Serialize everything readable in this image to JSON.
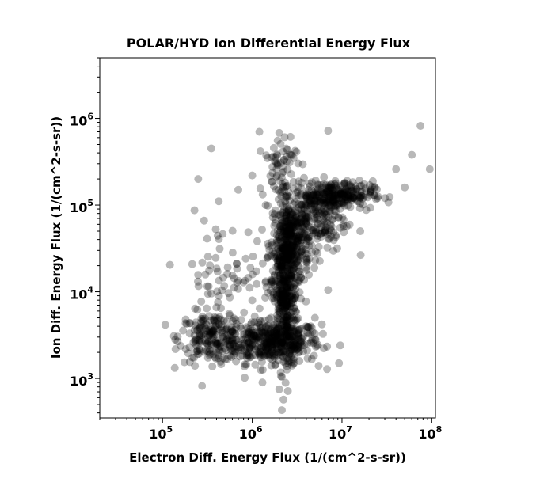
{
  "chart_data": {
    "type": "scatter",
    "title": "POLAR/HYD  Ion Differential Energy Flux",
    "xlabel": "Electron Diff. Energy Flux (1/(cm^2-s-sr))",
    "ylabel": "Ion Diff. Energy Flux (1/(cm^2-s-sr))",
    "x_scale": "log",
    "y_scale": "log",
    "xlim": [
      20000,
      110000000
    ],
    "ylim": [
      350,
      5000000
    ],
    "x_ticks": [
      {
        "base": "10",
        "exp": "5",
        "value": 100000
      },
      {
        "base": "10",
        "exp": "6",
        "value": 1000000
      },
      {
        "base": "10",
        "exp": "7",
        "value": 10000000
      },
      {
        "base": "10",
        "exp": "8",
        "value": 100000000
      }
    ],
    "y_ticks": [
      {
        "base": "10",
        "exp": "3",
        "value": 1000
      },
      {
        "base": "10",
        "exp": "4",
        "value": 10000
      },
      {
        "base": "10",
        "exp": "5",
        "value": 100000
      },
      {
        "base": "10",
        "exp": "6",
        "value": 1000000
      }
    ],
    "grid": false,
    "marker_color": "#000000",
    "marker_alpha": 0.28,
    "clusters": [
      {
        "x_center": 1600000,
        "y_center": 2600,
        "x_spread": 0.28,
        "y_spread": 0.12,
        "count": 420
      },
      {
        "x_center": 350000,
        "y_center": 3000,
        "x_spread": 0.18,
        "y_spread": 0.14,
        "count": 180
      },
      {
        "x_center": 2300000,
        "y_center": 9000,
        "x_spread": 0.07,
        "y_spread": 0.42,
        "count": 420
      },
      {
        "x_center": 2700000,
        "y_center": 35000,
        "x_spread": 0.1,
        "y_spread": 0.25,
        "count": 320
      },
      {
        "x_center": 8000000,
        "y_center": 130000,
        "x_spread": 0.22,
        "y_spread": 0.08,
        "count": 300
      },
      {
        "x_center": 5000000,
        "y_center": 65000,
        "x_spread": 0.18,
        "y_spread": 0.18,
        "count": 180
      },
      {
        "x_center": 600000,
        "y_center": 15000,
        "x_spread": 0.3,
        "y_spread": 0.35,
        "count": 90
      },
      {
        "x_center": 2000000,
        "y_center": 300000,
        "x_spread": 0.1,
        "y_spread": 0.2,
        "count": 60
      }
    ],
    "outliers": [
      {
        "x": 350000,
        "y": 450000
      },
      {
        "x": 250000,
        "y": 200000
      },
      {
        "x": 75000000,
        "y": 820000
      },
      {
        "x": 95000000,
        "y": 260000
      },
      {
        "x": 60000000,
        "y": 380000
      },
      {
        "x": 40000000,
        "y": 260000
      },
      {
        "x": 50000000,
        "y": 160000
      },
      {
        "x": 7000000,
        "y": 720000
      },
      {
        "x": 1200000,
        "y": 700000
      },
      {
        "x": 2000000,
        "y": 680000
      },
      {
        "x": 2000000,
        "y": 750
      },
      {
        "x": 1300000,
        "y": 900
      },
      {
        "x": 7000000,
        "y": 10500
      },
      {
        "x": 5500000,
        "y": 1400
      },
      {
        "x": 5000000,
        "y": 5000
      },
      {
        "x": 200000,
        "y": 2300
      },
      {
        "x": 230000,
        "y": 1400
      },
      {
        "x": 700000,
        "y": 150000
      },
      {
        "x": 16000000,
        "y": 50000
      },
      {
        "x": 1000000,
        "y": 220000
      }
    ]
  }
}
